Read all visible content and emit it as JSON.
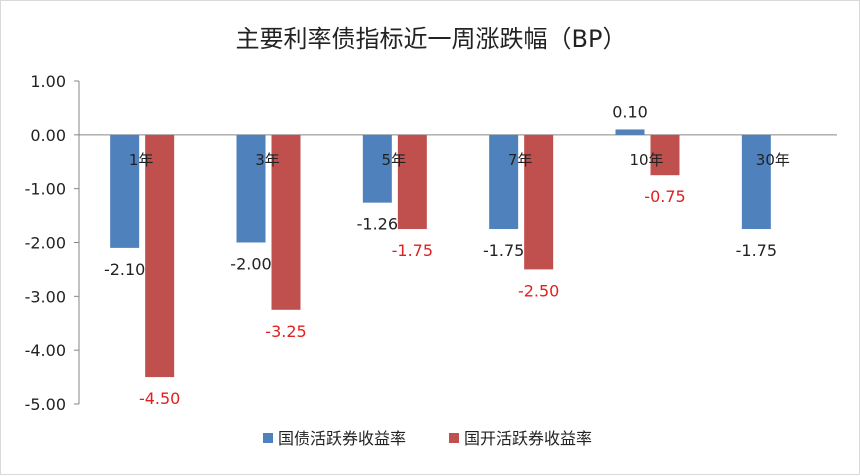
{
  "chart_data": {
    "type": "bar",
    "title": "主要利率债指标近一周涨跌幅（BP）",
    "categories": [
      "1年",
      "3年",
      "5年",
      "7年",
      "10年",
      "30年"
    ],
    "series": [
      {
        "name": "国债活跃券收益率",
        "color": "#4f81bd",
        "label_color": "#222222",
        "values": [
          -2.1,
          -2.0,
          -1.26,
          -1.75,
          0.1,
          -1.75
        ],
        "labels": [
          "-2.10",
          "-2.00",
          "-1.26",
          "-1.75",
          "0.10",
          "-1.75"
        ]
      },
      {
        "name": "国开活跃券收益率",
        "color": "#c0504d",
        "label_color": "#e02020",
        "values": [
          -4.5,
          -3.25,
          -1.75,
          -2.5,
          -0.75,
          null
        ],
        "labels": [
          "-4.50",
          "-3.25",
          "-1.75",
          "-2.50",
          "-0.75",
          ""
        ]
      }
    ],
    "yticks": [
      "1.00",
      "0.00",
      "-1.00",
      "-2.00",
      "-3.00",
      "-4.00",
      "-5.00"
    ],
    "ylim": [
      -5,
      1
    ],
    "xlabel": "",
    "ylabel": "",
    "grid": false,
    "legend_position": "bottom"
  }
}
